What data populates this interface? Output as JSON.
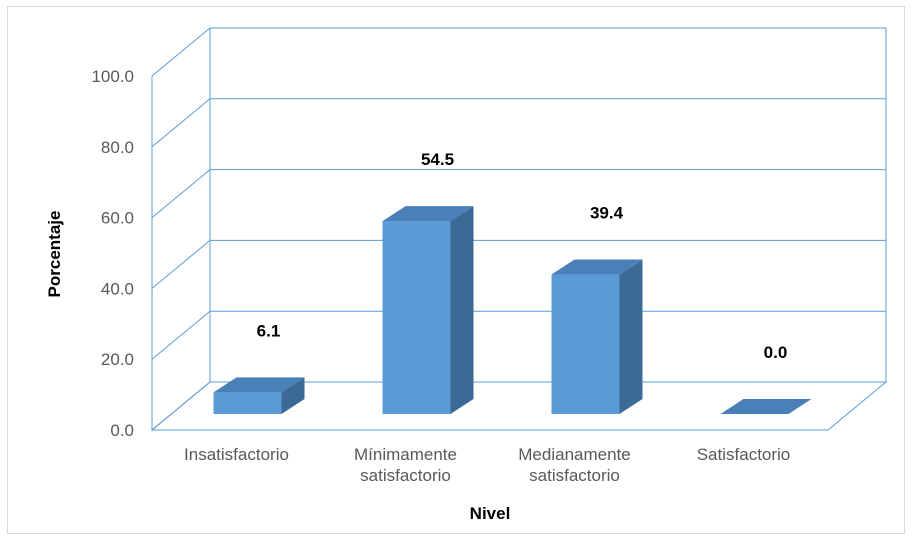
{
  "chart_data": {
    "type": "bar",
    "title": "",
    "xlabel": "Nivel",
    "ylabel": "Porcentaje",
    "ylim": [
      0,
      100
    ],
    "yticks": [
      "0.0",
      "20.0",
      "40.0",
      "60.0",
      "80.0",
      "100.0"
    ],
    "categories": [
      [
        "Insatisfactorio"
      ],
      [
        "Mínimamente",
        "satisfactorio"
      ],
      [
        "Medianamente",
        "satisfactorio"
      ],
      [
        "Satisfactorio"
      ]
    ],
    "values": [
      6.1,
      54.5,
      39.4,
      0.0
    ],
    "data_labels": [
      "6.1",
      "54.5",
      "39.4",
      "0.0"
    ],
    "grid": true,
    "legend": "none",
    "style": "3d-column",
    "colors": {
      "bar_front": "#5b9bd5",
      "bar_side": "#3b6a96",
      "bar_top": "#4a80b8",
      "grid": "#5b9bd5"
    }
  }
}
